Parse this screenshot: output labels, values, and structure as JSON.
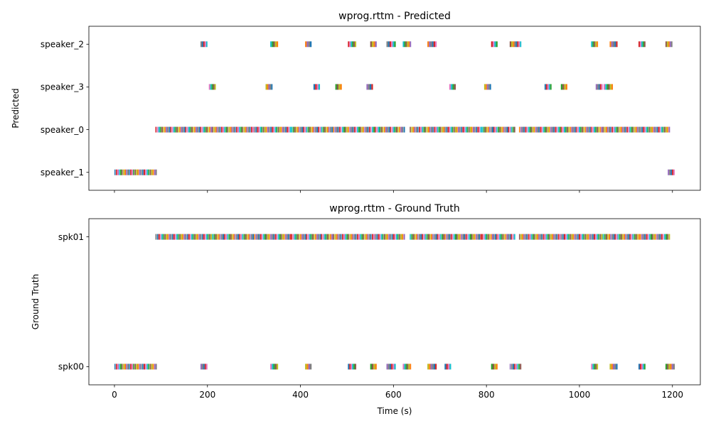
{
  "colors": [
    "#1f77b4",
    "#ff7f0e",
    "#2ca02c",
    "#d62728",
    "#9467bd",
    "#8c564b",
    "#e377c2",
    "#7f7f7f",
    "#bcbd22",
    "#17becf"
  ],
  "chart_data": [
    {
      "type": "timeline",
      "title": "wprog.rttm - Predicted",
      "ylabel": "Predicted",
      "xlabel": "",
      "xlim": [
        -55,
        1260
      ],
      "xticks": [
        0,
        200,
        400,
        600,
        800,
        1000,
        1200
      ],
      "xtick_labels_visible": false,
      "rows": [
        "speaker_1",
        "speaker_0",
        "speaker_3",
        "speaker_2"
      ],
      "segments": {
        "speaker_2": [
          [
            185,
            200
          ],
          [
            335,
            352
          ],
          [
            410,
            424
          ],
          [
            502,
            520
          ],
          [
            550,
            564
          ],
          [
            585,
            605
          ],
          [
            620,
            638
          ],
          [
            673,
            693
          ],
          [
            810,
            824
          ],
          [
            850,
            860
          ],
          [
            860,
            875
          ],
          [
            1025,
            1040
          ],
          [
            1065,
            1082
          ],
          [
            1127,
            1142
          ],
          [
            1185,
            1200
          ]
        ],
        "speaker_3": [
          [
            203,
            218
          ],
          [
            325,
            340
          ],
          [
            428,
            442
          ],
          [
            475,
            489
          ],
          [
            542,
            556
          ],
          [
            720,
            734
          ],
          [
            795,
            810
          ],
          [
            925,
            940
          ],
          [
            960,
            974
          ],
          [
            1035,
            1050
          ],
          [
            1052,
            1072
          ]
        ],
        "speaker_0": [
          [
            88,
            210
          ],
          [
            210,
            300
          ],
          [
            300,
            380
          ],
          [
            380,
            470
          ],
          [
            470,
            560
          ],
          [
            560,
            625
          ],
          [
            635,
            710
          ],
          [
            710,
            790
          ],
          [
            790,
            862
          ],
          [
            870,
            960
          ],
          [
            960,
            1050
          ],
          [
            1050,
            1130
          ],
          [
            1130,
            1195
          ]
        ],
        "speaker_1": [
          [
            0,
            40
          ],
          [
            40,
            92
          ],
          [
            1190,
            1205
          ]
        ]
      }
    },
    {
      "type": "timeline",
      "title": "wprog.rttm - Ground Truth",
      "ylabel": "Ground Truth",
      "xlabel": "Time (s)",
      "xlim": [
        -55,
        1260
      ],
      "xticks": [
        0,
        200,
        400,
        600,
        800,
        1000,
        1200
      ],
      "xtick_labels_visible": true,
      "rows": [
        "spk00",
        "spk01"
      ],
      "segments": {
        "spk01": [
          [
            88,
            210
          ],
          [
            210,
            300
          ],
          [
            300,
            380
          ],
          [
            380,
            470
          ],
          [
            470,
            560
          ],
          [
            560,
            625
          ],
          [
            635,
            710
          ],
          [
            710,
            790
          ],
          [
            790,
            862
          ],
          [
            870,
            960
          ],
          [
            960,
            1050
          ],
          [
            1050,
            1130
          ],
          [
            1130,
            1195
          ]
        ],
        "spk00": [
          [
            0,
            40
          ],
          [
            40,
            92
          ],
          [
            185,
            200
          ],
          [
            335,
            352
          ],
          [
            410,
            424
          ],
          [
            502,
            520
          ],
          [
            550,
            564
          ],
          [
            585,
            605
          ],
          [
            620,
            638
          ],
          [
            673,
            693
          ],
          [
            710,
            724
          ],
          [
            810,
            824
          ],
          [
            850,
            875
          ],
          [
            1025,
            1040
          ],
          [
            1065,
            1082
          ],
          [
            1127,
            1142
          ],
          [
            1185,
            1205
          ]
        ]
      }
    }
  ]
}
